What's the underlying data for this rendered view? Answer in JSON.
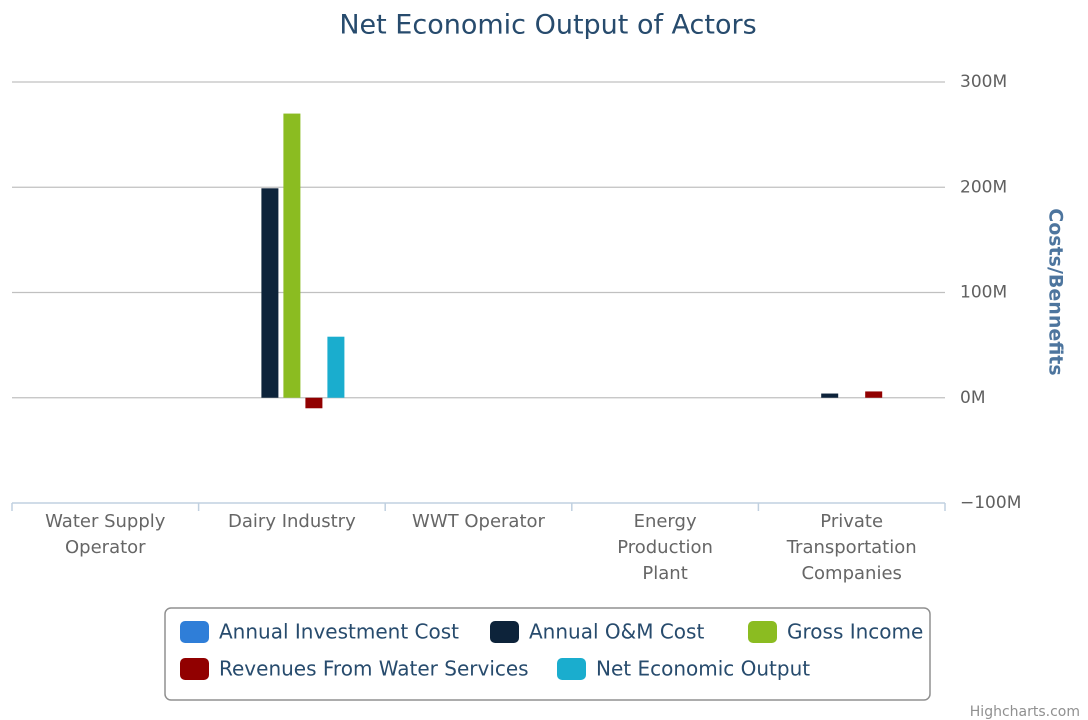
{
  "chart_data": {
    "type": "bar",
    "title": "Net Economic Output of Actors",
    "y_axis_label": "Costs/Bennefits",
    "categories": [
      "Water Supply Operator",
      "Dairy Industry",
      "WWT Operator",
      "Energy Production Plant",
      "Private Transportation Companies"
    ],
    "series": [
      {
        "name": "Annual Investment Cost",
        "color": "#2f7ed8",
        "values": [
          0,
          0,
          0,
          0,
          0
        ]
      },
      {
        "name": "Annual O&M Cost",
        "color": "#0d233a",
        "values": [
          0,
          199,
          0,
          0,
          4
        ]
      },
      {
        "name": "Gross Income",
        "color": "#8bbc21",
        "values": [
          0,
          270,
          0,
          0,
          0
        ]
      },
      {
        "name": "Revenues From Water Services",
        "color": "#910000",
        "values": [
          0,
          -10,
          0,
          0,
          6
        ]
      },
      {
        "name": "Net Economic Output",
        "color": "#1aadce",
        "values": [
          0,
          58,
          0,
          0,
          0
        ]
      }
    ],
    "ylim": [
      -100,
      300
    ],
    "yticks": [
      {
        "value": -100,
        "label": "−100M"
      },
      {
        "value": 0,
        "label": "0M"
      },
      {
        "value": 100,
        "label": "100M"
      },
      {
        "value": 200,
        "label": "200M"
      },
      {
        "value": 300,
        "label": "300M"
      }
    ],
    "grid": true,
    "credits": "Highcharts.com"
  }
}
